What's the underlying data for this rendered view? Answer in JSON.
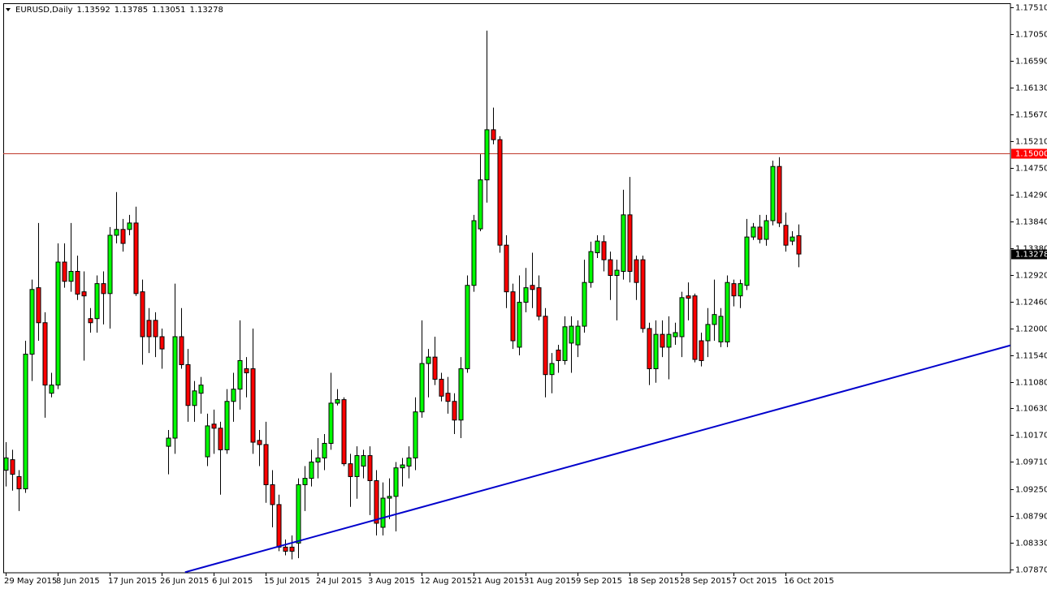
{
  "chart_data": {
    "type": "candlestick",
    "title": "EURUSD,Daily",
    "categories": [
      "29 May 2015",
      null,
      null,
      null,
      null,
      null,
      null,
      null,
      "8 Jun 2015",
      null,
      null,
      null,
      null,
      null,
      null,
      null,
      "17 Jun 2015",
      null,
      null,
      null,
      null,
      null,
      null,
      null,
      "26 Jun 2015",
      null,
      null,
      null,
      null,
      null,
      null,
      null,
      "6 Jul 2015",
      null,
      null,
      null,
      null,
      null,
      null,
      null,
      "15 Jul 2015",
      null,
      null,
      null,
      null,
      null,
      null,
      null,
      "24 Jul 2015",
      null,
      null,
      null,
      null,
      null,
      null,
      null,
      "3 Aug 2015",
      null,
      null,
      null,
      null,
      null,
      null,
      null,
      "12 Aug 2015",
      null,
      null,
      null,
      null,
      null,
      null,
      null,
      "21 Aug 2015",
      null,
      null,
      null,
      null,
      null,
      null,
      null,
      "31 Aug 2015",
      null,
      null,
      null,
      null,
      null,
      null,
      null,
      "9 Sep 2015",
      null,
      null,
      null,
      null,
      null,
      null,
      null,
      "18 Sep 2015",
      null,
      null,
      null,
      null,
      null,
      null,
      null,
      "28 Sep 2015",
      null,
      null,
      null,
      null,
      null,
      null,
      null,
      "7 Oct 2015",
      null,
      null,
      null,
      null,
      null,
      null,
      null,
      "16 Oct 2015",
      null,
      null
    ],
    "open": [
      1.0957,
      1.0975,
      1.0946,
      1.0925,
      1.1156,
      1.127,
      1.121,
      1.1089,
      1.1103,
      1.1314,
      1.1281,
      1.1298,
      1.1263,
      1.1217,
      1.1217,
      1.1277,
      1.126,
      1.136,
      1.137,
      1.137,
      1.1381,
      1.1263,
      1.1214,
      1.1214,
      1.1186,
      1.0998,
      1.1012,
      1.1186,
      1.1138,
      1.1068,
      1.1089,
      1.098,
      1.1036,
      1.1029,
      1.0992,
      1.1075,
      1.1096,
      1.1131,
      1.1131,
      1.1008,
      1.1001,
      1.0932,
      1.0898,
      1.0825,
      1.0825,
      1.0832,
      1.0932,
      1.0943,
      1.0971,
      1.0978,
      1.1003,
      1.1072,
      1.1078,
      1.0968,
      1.0946,
      1.0964,
      1.0982,
      1.0939,
      1.0859,
      1.0909,
      1.0912,
      1.0961,
      1.0964,
      1.0978,
      1.1057,
      1.114,
      1.1151,
      1.1113,
      1.1089,
      1.1075,
      1.1043,
      1.1131,
      1.1274,
      1.1371,
      1.1455,
      1.1541,
      1.1524,
      1.1343,
      1.1263,
      1.1168,
      1.1245,
      1.1274,
      1.127,
      1.1221,
      1.1121,
      1.1163,
      1.1145,
      1.1175,
      1.1172,
      1.1204,
      1.1279,
      1.133,
      1.1349,
      1.1318,
      1.1291,
      1.1298,
      1.1395,
      1.1318,
      1.1318,
      1.12,
      1.1131,
      1.119,
      1.1168,
      1.1186,
      1.1186,
      1.1256,
      1.1256,
      1.1179,
      1.1179,
      1.1207,
      1.1177,
      1.1177,
      1.1277,
      1.1256,
      1.1274,
      1.1357,
      1.1374,
      1.1353,
      1.1385,
      1.1478,
      1.1377,
      1.135,
      1.13592
    ],
    "high": [
      1.1005,
      1.0992,
      1.0957,
      1.1179,
      1.1284,
      1.1381,
      1.1228,
      1.1124,
      1.1346,
      1.1346,
      1.1381,
      1.1325,
      1.1298,
      1.1235,
      1.1291,
      1.1298,
      1.1374,
      1.1434,
      1.1388,
      1.1395,
      1.1409,
      1.1284,
      1.1235,
      1.1228,
      1.12,
      1.1026,
      1.1277,
      1.1235,
      1.1165,
      1.111,
      1.1117,
      1.1054,
      1.1061,
      1.104,
      1.1096,
      1.1124,
      1.1214,
      1.1151,
      1.12,
      1.1026,
      1.104,
      1.0957,
      1.0915,
      1.0838,
      1.0845,
      1.0943,
      1.0964,
      1.0992,
      1.1012,
      1.1019,
      1.1124,
      1.1096,
      1.1082,
      1.0985,
      1.0998,
      1.0992,
      1.0998,
      1.0957,
      1.0936,
      1.0943,
      1.0971,
      1.0978,
      1.0998,
      1.1082,
      1.1214,
      1.1165,
      1.1186,
      1.1124,
      1.1117,
      1.1089,
      1.1151,
      1.1291,
      1.1395,
      1.1499,
      1.1711,
      1.1579,
      1.153,
      1.136,
      1.1277,
      1.1291,
      1.1304,
      1.133,
      1.1291,
      1.1235,
      1.1158,
      1.1172,
      1.1221,
      1.1221,
      1.1214,
      1.1318,
      1.1349,
      1.136,
      1.136,
      1.1332,
      1.1318,
      1.1438,
      1.146,
      1.1325,
      1.1325,
      1.121,
      1.1214,
      1.1214,
      1.1221,
      1.121,
      1.1263,
      1.1279,
      1.126,
      1.1193,
      1.1235,
      1.1284,
      1.1235,
      1.1291,
      1.1284,
      1.1284,
      1.1388,
      1.1381,
      1.1395,
      1.1395,
      1.1488,
      1.1494,
      1.1399,
      1.1367,
      1.13785
    ],
    "low": [
      1.0929,
      1.0922,
      1.0887,
      1.0918,
      1.111,
      1.1179,
      1.1047,
      1.1082,
      1.1096,
      1.127,
      1.1263,
      1.1249,
      1.1145,
      1.1193,
      1.1193,
      1.1207,
      1.12,
      1.1346,
      1.1332,
      1.136,
      1.1256,
      1.1138,
      1.1158,
      1.1151,
      1.1131,
      1.095,
      1.0985,
      1.1131,
      1.104,
      1.104,
      1.1054,
      1.0964,
      1.0985,
      1.0915,
      1.0985,
      1.104,
      1.1061,
      1.1082,
      1.0985,
      1.0964,
      1.0901,
      1.0859,
      1.0818,
      1.0811,
      1.0804,
      1.0806,
      1.0887,
      1.0929,
      1.0943,
      1.0957,
      1.0992,
      1.1068,
      1.0964,
      1.0894,
      1.0908,
      1.0943,
      1.088,
      1.0845,
      1.0845,
      1.0873,
      1.0852,
      1.0929,
      1.0943,
      1.0957,
      1.1047,
      1.1082,
      1.1103,
      1.1075,
      1.1054,
      1.1019,
      1.1012,
      1.1124,
      1.1263,
      1.1367,
      1.1416,
      1.1516,
      1.133,
      1.1235,
      1.1165,
      1.1154,
      1.1228,
      1.1235,
      1.1214,
      1.1082,
      1.1089,
      1.1124,
      1.1138,
      1.1124,
      1.1151,
      1.1193,
      1.127,
      1.1321,
      1.1298,
      1.1249,
      1.1214,
      1.1284,
      1.1279,
      1.1249,
      1.1193,
      1.1103,
      1.1107,
      1.1151,
      1.1113,
      1.1172,
      1.1151,
      1.1214,
      1.1142,
      1.1135,
      1.1151,
      1.1179,
      1.1168,
      1.1168,
      1.1238,
      1.1235,
      1.1266,
      1.1352,
      1.1346,
      1.1342,
      1.1377,
      1.1374,
      1.1332,
      1.1343,
      1.13051
    ],
    "close": [
      1.0978,
      1.095,
      1.0925,
      1.1156,
      1.1267,
      1.121,
      1.1103,
      1.1103,
      1.1314,
      1.1281,
      1.1298,
      1.1259,
      1.1256,
      1.121,
      1.1277,
      1.126,
      1.136,
      1.137,
      1.1346,
      1.1381,
      1.126,
      1.1186,
      1.1186,
      1.1186,
      1.1165,
      1.1012,
      1.1186,
      1.1138,
      1.1068,
      1.1093,
      1.1103,
      1.1033,
      1.1029,
      1.0992,
      1.1075,
      1.1096,
      1.1145,
      1.1124,
      1.1005,
      1.1001,
      1.0932,
      1.0898,
      1.0825,
      1.0818,
      1.0818,
      1.0932,
      1.0943,
      1.0971,
      1.0978,
      1.1003,
      1.1072,
      1.1078,
      1.0968,
      1.0946,
      1.0982,
      1.0982,
      1.0939,
      1.0866,
      1.0909,
      1.0912,
      1.0961,
      1.0966,
      1.0978,
      1.1057,
      1.114,
      1.1151,
      1.1113,
      1.1084,
      1.1075,
      1.1043,
      1.1131,
      1.1274,
      1.1385,
      1.1455,
      1.1541,
      1.1524,
      1.1343,
      1.1263,
      1.1179,
      1.1245,
      1.127,
      1.1267,
      1.1221,
      1.1121,
      1.114,
      1.1145,
      1.1203,
      1.1204,
      1.1204,
      1.1279,
      1.1332,
      1.135,
      1.1318,
      1.1291,
      1.13,
      1.1395,
      1.1298,
      1.1279,
      1.12,
      1.1131,
      1.119,
      1.1168,
      1.119,
      1.1193,
      1.1253,
      1.1252,
      1.1147,
      1.1145,
      1.1207,
      1.1224,
      1.1221,
      1.1279,
      1.1256,
      1.1277,
      1.1357,
      1.1374,
      1.1353,
      1.1385,
      1.1478,
      1.1381,
      1.1343,
      1.1357,
      1.13278
    ],
    "up_color": "#00ff00",
    "down_color": "#ff0000",
    "ylim": [
      1.0781,
      1.1758
    ],
    "yticks": [
      {
        "value": 1.1751,
        "label": "1.17510"
      },
      {
        "value": 1.1705,
        "label": "1.17050"
      },
      {
        "value": 1.1659,
        "label": "1.16590"
      },
      {
        "value": 1.1613,
        "label": "1.16130"
      },
      {
        "value": 1.1567,
        "label": "1.15670"
      },
      {
        "value": 1.1521,
        "label": "1.15210"
      },
      {
        "value": 1.1475,
        "label": "1.14750"
      },
      {
        "value": 1.1429,
        "label": "1.14290"
      },
      {
        "value": 1.1384,
        "label": "1.13840"
      },
      {
        "value": 1.1338,
        "label": "1.13380"
      },
      {
        "value": 1.1292,
        "label": "1.12920"
      },
      {
        "value": 1.1246,
        "label": "1.12460"
      },
      {
        "value": 1.12,
        "label": "1.12000"
      },
      {
        "value": 1.1154,
        "label": "1.11540"
      },
      {
        "value": 1.1108,
        "label": "1.11080"
      },
      {
        "value": 1.1063,
        "label": "1.10630"
      },
      {
        "value": 1.1017,
        "label": "1.10170"
      },
      {
        "value": 1.0971,
        "label": "1.09710"
      },
      {
        "value": 1.0925,
        "label": "1.09250"
      },
      {
        "value": 1.0879,
        "label": "1.08790"
      },
      {
        "value": 1.0833,
        "label": "1.08330"
      },
      {
        "value": 1.0787,
        "label": "1.07870"
      }
    ],
    "hline": {
      "value": 1.15,
      "label": "1.15000",
      "color": "#c0392b"
    },
    "trendline": {
      "x": [
        27.6,
        154.6
      ],
      "y": [
        1.0782,
        1.1171
      ],
      "color": "#0000cc"
    }
  }
}
